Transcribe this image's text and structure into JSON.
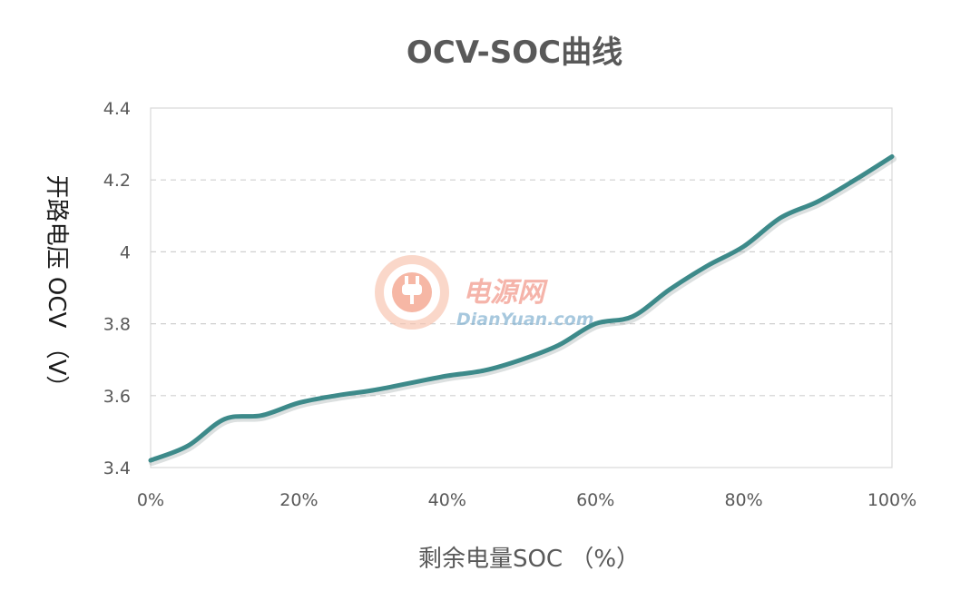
{
  "chart_data": {
    "type": "line",
    "title": "OCV-SOC曲线",
    "xlabel": "剩余电量SOC （%）",
    "ylabel": "开路电压 OCV （V）",
    "xlim": [
      0,
      100
    ],
    "ylim": [
      3.4,
      4.4
    ],
    "xticks": [
      "0%",
      "20%",
      "40%",
      "60%",
      "80%",
      "100%"
    ],
    "yticks": [
      "3.4",
      "3.6",
      "3.8",
      "4",
      "4.2",
      "4.4"
    ],
    "grid": "horizontal dashed",
    "line_color": "#3d8a8a",
    "series": [
      {
        "x": [
          0,
          5,
          10,
          15,
          20,
          25,
          30,
          35,
          40,
          45,
          50,
          55,
          60,
          65,
          70,
          75,
          80,
          85,
          90,
          95,
          100
        ],
        "values": [
          3.42,
          3.46,
          3.535,
          3.545,
          3.58,
          3.6,
          3.615,
          3.635,
          3.655,
          3.67,
          3.7,
          3.74,
          3.8,
          3.82,
          3.895,
          3.96,
          4.015,
          4.095,
          4.14,
          4.2,
          4.265
        ]
      }
    ]
  },
  "watermark": {
    "cn_text": "电源网",
    "en_text": "DianYuan.com",
    "cn_color": "#f08a7a",
    "en_color": "#7fb0cf",
    "logo_icon": "power-plug-logo-icon"
  }
}
